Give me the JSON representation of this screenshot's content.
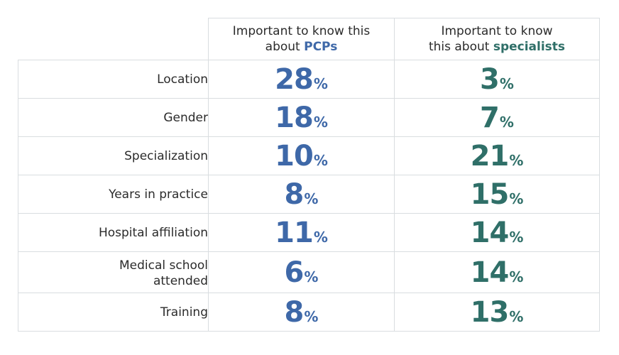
{
  "chart_data": {
    "type": "table",
    "columns": [
      {
        "prefix": "Important to know this",
        "prefix2": "about",
        "keyword": "PCPs",
        "color": "#3e68a8"
      },
      {
        "prefix": "Important to know",
        "prefix2": "this about",
        "keyword": "specialists",
        "color": "#2f6f68"
      }
    ],
    "unit": "%",
    "rows": [
      {
        "label": "Location",
        "pcp": 28,
        "specialists": 3
      },
      {
        "label": "Gender",
        "pcp": 18,
        "specialists": 7
      },
      {
        "label": "Specialization",
        "pcp": 10,
        "specialists": 21
      },
      {
        "label": "Years in practice",
        "pcp": 8,
        "specialists": 15
      },
      {
        "label": "Hospital affiliation",
        "pcp": 11,
        "specialists": 14
      },
      {
        "label": "Medical school attended",
        "pcp": 6,
        "specialists": 14
      },
      {
        "label": "Training",
        "pcp": 8,
        "specialists": 13
      }
    ]
  }
}
